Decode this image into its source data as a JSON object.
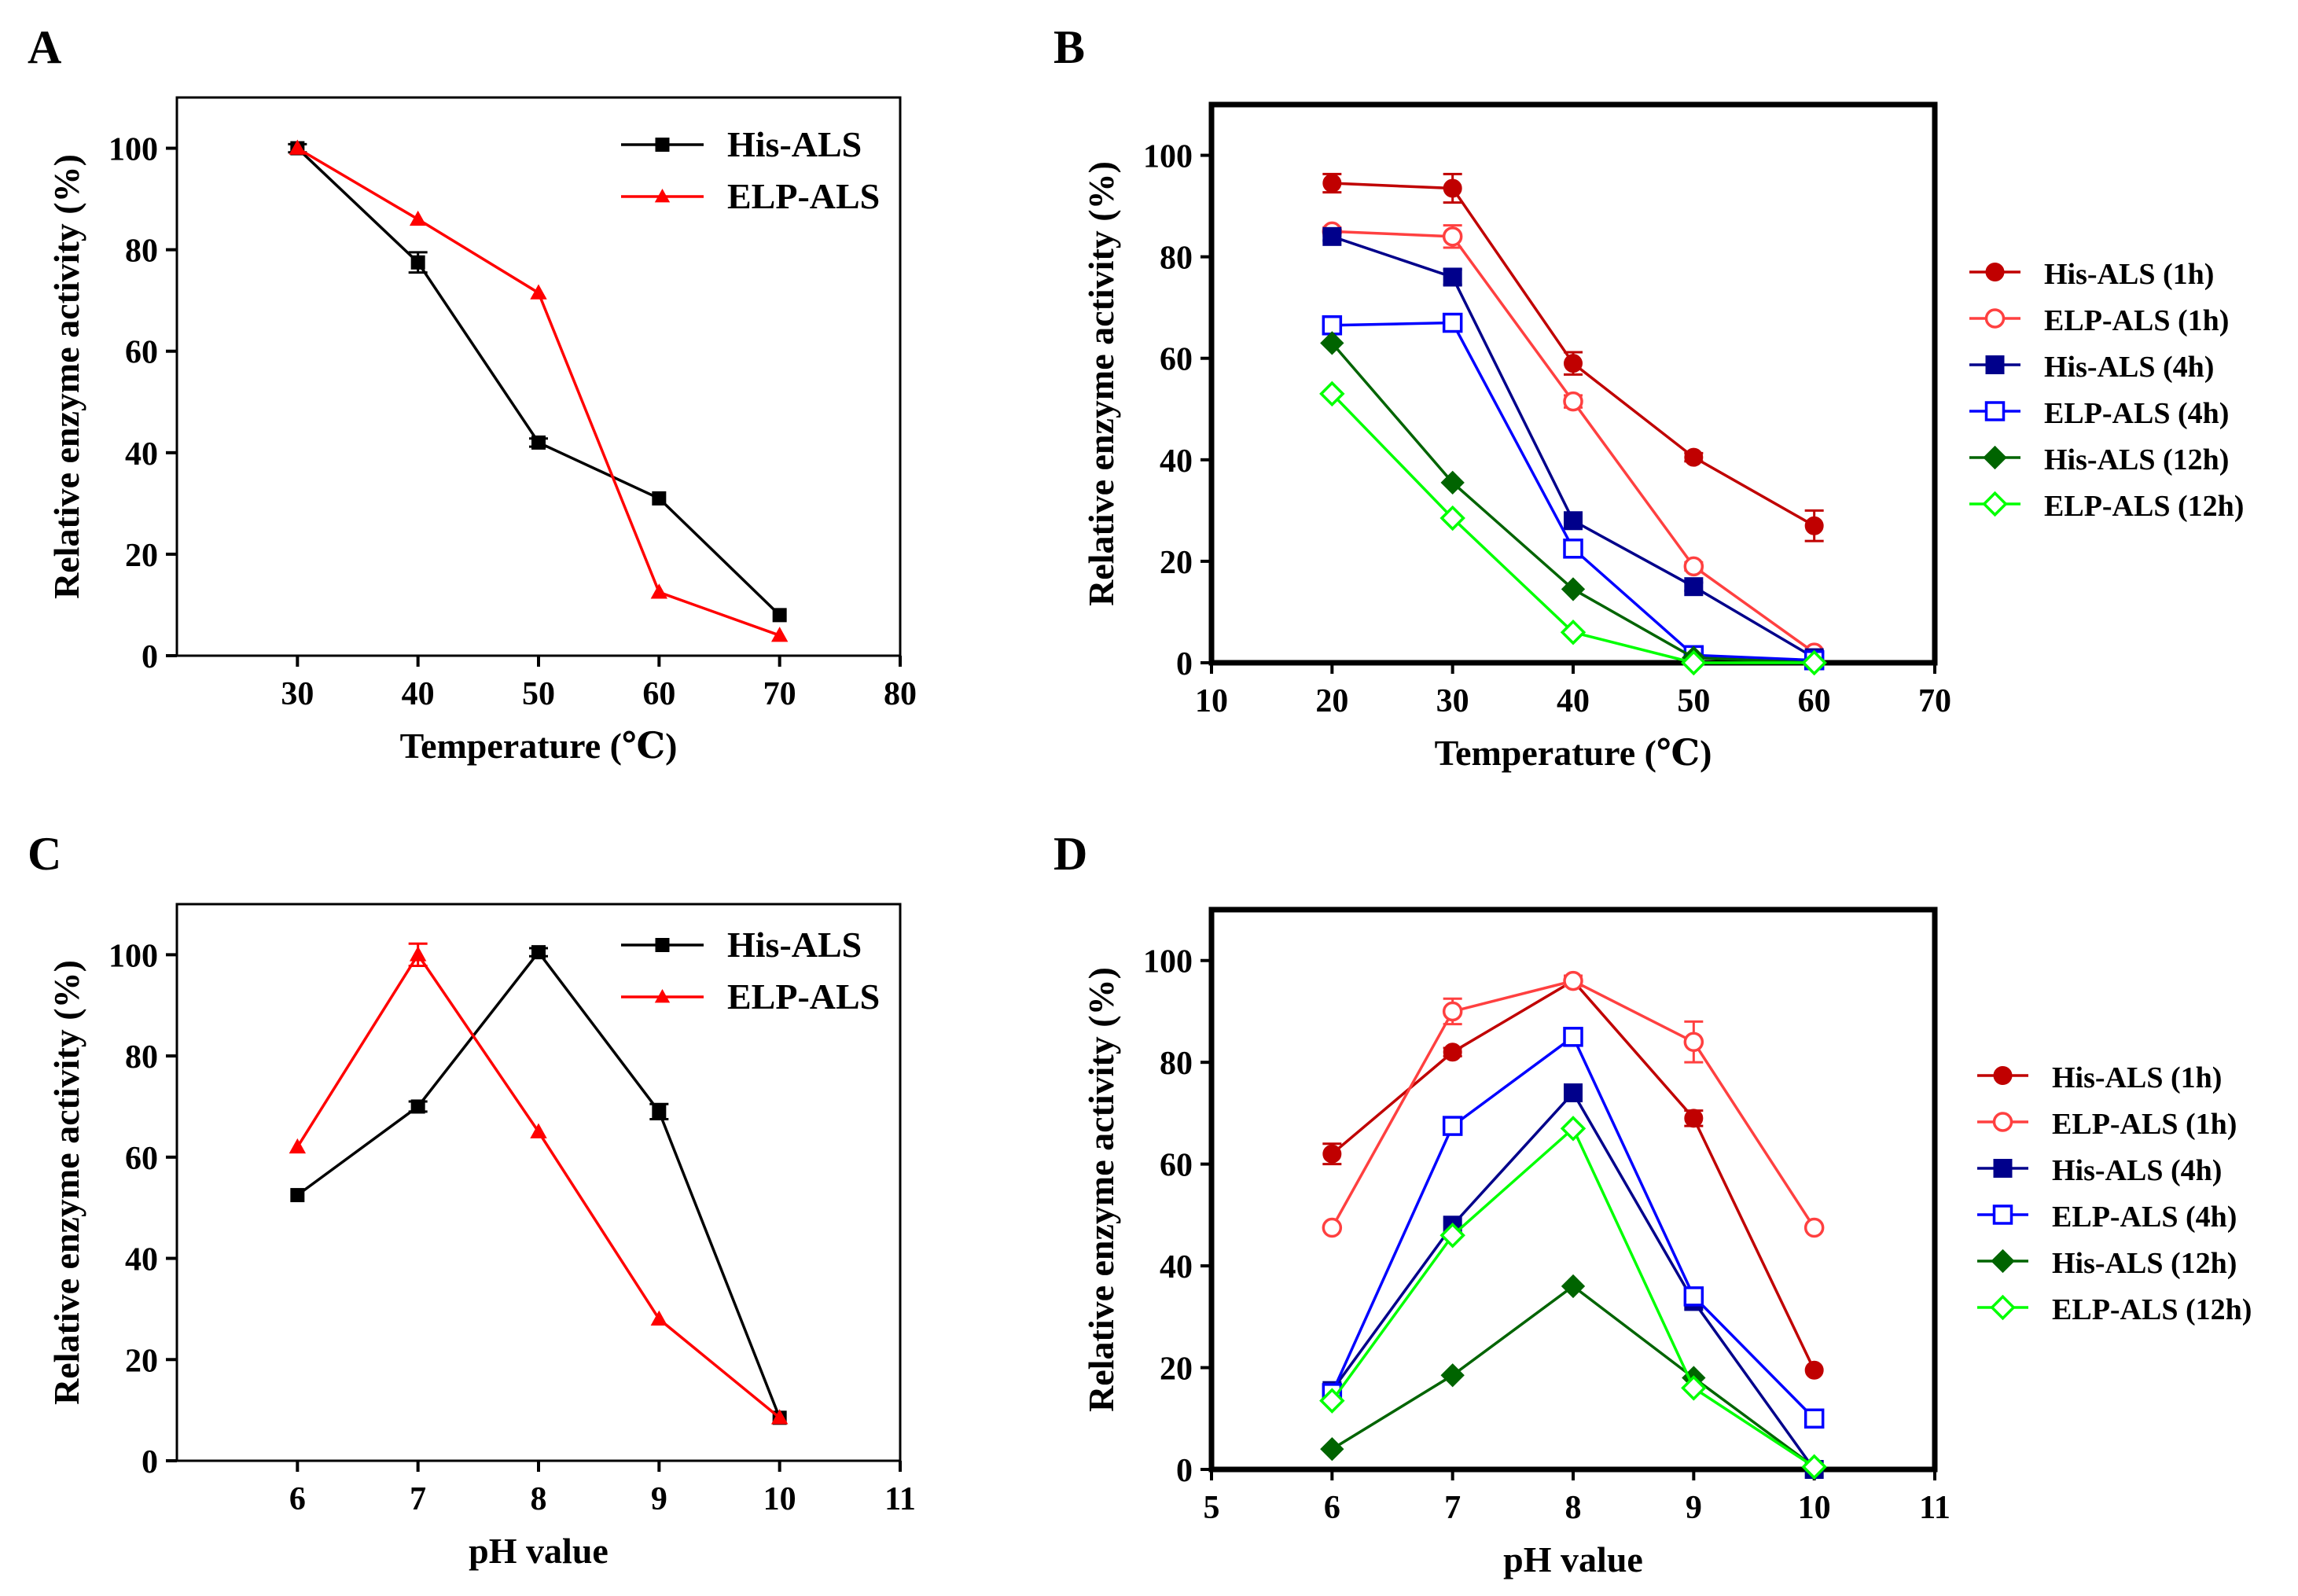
{
  "chart_data": [
    {
      "panel": "A",
      "type": "line",
      "xlabel": "Temperature (℃)",
      "ylabel": "Relative enzyme activity (%)",
      "xlim": [
        20,
        80
      ],
      "ylim": [
        0,
        110
      ],
      "xticks": [
        30,
        40,
        50,
        60,
        70,
        80
      ],
      "yticks": [
        0,
        20,
        40,
        60,
        80,
        100
      ],
      "legend_position": "top-right",
      "series": [
        {
          "name": "His-ALS",
          "color": "#000000",
          "marker": "square",
          "filled": true,
          "x": [
            30,
            40,
            50,
            60,
            70
          ],
          "values": [
            100,
            77.5,
            42,
            31,
            8
          ],
          "errors": [
            0.8,
            2,
            0.8,
            0.6,
            0.6
          ]
        },
        {
          "name": "ELP-ALS",
          "color": "#ff0000",
          "marker": "triangle",
          "filled": true,
          "x": [
            30,
            40,
            50,
            60,
            70
          ],
          "values": [
            100,
            86,
            71.5,
            12.5,
            4
          ],
          "errors": [
            0,
            0,
            0,
            0,
            0
          ]
        }
      ]
    },
    {
      "panel": "B",
      "type": "line",
      "xlabel": "Temperature (℃)",
      "ylabel": "Relative enzyme activity (%)",
      "xlim": [
        10,
        70
      ],
      "ylim": [
        0,
        110
      ],
      "xticks": [
        10,
        20,
        30,
        40,
        50,
        60,
        70
      ],
      "yticks": [
        0,
        20,
        40,
        60,
        80,
        100
      ],
      "legend_position": "right",
      "series": [
        {
          "name": "His-ALS (1h)",
          "color": "#c00000",
          "marker": "circle",
          "filled": true,
          "x": [
            20,
            30,
            40,
            50,
            60
          ],
          "values": [
            94.5,
            93.5,
            59,
            40.5,
            27
          ],
          "errors": [
            1.8,
            2.8,
            2.2,
            0.8,
            3
          ]
        },
        {
          "name": "ELP-ALS (1h)",
          "color": "#ff4040",
          "marker": "circle",
          "filled": false,
          "x": [
            20,
            30,
            40,
            50,
            60
          ],
          "values": [
            85,
            84,
            51.5,
            19,
            2
          ],
          "errors": [
            0.8,
            2.2,
            1.2,
            0.8,
            0.5
          ]
        },
        {
          "name": "His-ALS (4h)",
          "color": "#00008b",
          "marker": "square",
          "filled": true,
          "x": [
            20,
            30,
            40,
            50,
            60
          ],
          "values": [
            84,
            76,
            28,
            15,
            1
          ],
          "errors": [
            0.8,
            1.5,
            0.8,
            0.8,
            0.3
          ]
        },
        {
          "name": "ELP-ALS (4h)",
          "color": "#0000ff",
          "marker": "square",
          "filled": false,
          "x": [
            20,
            30,
            40,
            50,
            60
          ],
          "values": [
            66.5,
            67,
            22.5,
            1.5,
            0.5
          ],
          "errors": [
            0.5,
            0.5,
            0.8,
            0.3,
            0.2
          ]
        },
        {
          "name": "His-ALS (12h)",
          "color": "#006400",
          "marker": "diamond",
          "filled": true,
          "x": [
            20,
            30,
            40,
            50,
            60
          ],
          "values": [
            63,
            35.5,
            14.5,
            1,
            0
          ],
          "errors": [
            0.5,
            0.5,
            0.5,
            0.2,
            0.2
          ]
        },
        {
          "name": "ELP-ALS (12h)",
          "color": "#00ff00",
          "marker": "diamond",
          "filled": false,
          "x": [
            20,
            30,
            40,
            50,
            60
          ],
          "values": [
            53,
            28.5,
            6,
            0,
            0
          ],
          "errors": [
            0.5,
            0.5,
            0.5,
            0.2,
            0.2
          ]
        }
      ]
    },
    {
      "panel": "C",
      "type": "line",
      "xlabel": "pH value",
      "ylabel": "Relative enzyme activity (%)",
      "xlim": [
        5,
        11
      ],
      "ylim": [
        0,
        110
      ],
      "xticks": [
        6,
        7,
        8,
        9,
        10,
        11
      ],
      "yticks": [
        0,
        20,
        40,
        60,
        80,
        100
      ],
      "legend_position": "top-right",
      "series": [
        {
          "name": "His-ALS",
          "color": "#000000",
          "marker": "square",
          "filled": true,
          "x": [
            6,
            7,
            8,
            9,
            10
          ],
          "values": [
            52.5,
            70,
            100.5,
            69,
            8.5
          ],
          "errors": [
            0.6,
            1,
            0.8,
            1.5,
            0.4
          ]
        },
        {
          "name": "ELP-ALS",
          "color": "#ff0000",
          "marker": "triangle",
          "filled": true,
          "x": [
            6,
            7,
            8,
            9,
            10
          ],
          "values": [
            62,
            100,
            65,
            28,
            8.5
          ],
          "errors": [
            0,
            2.2,
            0,
            0,
            0
          ]
        }
      ]
    },
    {
      "panel": "D",
      "type": "line",
      "xlabel": "pH value",
      "ylabel": "Relative enzyme activity (%)",
      "xlim": [
        5,
        11
      ],
      "ylim": [
        0,
        110
      ],
      "xticks": [
        5,
        6,
        7,
        8,
        9,
        10,
        11
      ],
      "yticks": [
        0,
        20,
        40,
        60,
        80,
        100
      ],
      "legend_position": "right",
      "series": [
        {
          "name": "His-ALS (1h)",
          "color": "#c00000",
          "marker": "circle",
          "filled": true,
          "x": [
            6,
            7,
            8,
            9,
            10
          ],
          "values": [
            62,
            82,
            96,
            69,
            19.5
          ],
          "errors": [
            2,
            0.8,
            1,
            1.5,
            0.3
          ]
        },
        {
          "name": "ELP-ALS (1h)",
          "color": "#ff4040",
          "marker": "circle",
          "filled": false,
          "x": [
            6,
            7,
            8,
            9,
            10
          ],
          "values": [
            47.5,
            90,
            96,
            84,
            47.5
          ],
          "errors": [
            0.5,
            2.5,
            1,
            4,
            0.5
          ]
        },
        {
          "name": "His-ALS (4h)",
          "color": "#00008b",
          "marker": "square",
          "filled": true,
          "x": [
            6,
            7,
            8,
            9,
            10
          ],
          "values": [
            15.5,
            48,
            74,
            33,
            0
          ],
          "errors": [
            0.5,
            0.5,
            0.8,
            0.5,
            0.2
          ]
        },
        {
          "name": "ELP-ALS (4h)",
          "color": "#0000ff",
          "marker": "square",
          "filled": false,
          "x": [
            6,
            7,
            8,
            9,
            10
          ],
          "values": [
            15,
            67.5,
            85,
            34,
            10
          ],
          "errors": [
            0.3,
            0.5,
            0.5,
            0.5,
            0.3
          ]
        },
        {
          "name": "His-ALS (12h)",
          "color": "#006400",
          "marker": "diamond",
          "filled": true,
          "x": [
            6,
            7,
            8,
            9,
            10
          ],
          "values": [
            4,
            18.5,
            36,
            18,
            0.5
          ],
          "errors": [
            0.2,
            0.3,
            0.3,
            0.3,
            0.2
          ]
        },
        {
          "name": "ELP-ALS (12h)",
          "color": "#00ff00",
          "marker": "diamond",
          "filled": false,
          "x": [
            6,
            7,
            8,
            9,
            10
          ],
          "values": [
            13.5,
            46,
            67,
            16,
            0.5
          ],
          "errors": [
            0.3,
            0.5,
            0.5,
            0.5,
            0.2
          ]
        }
      ]
    }
  ]
}
